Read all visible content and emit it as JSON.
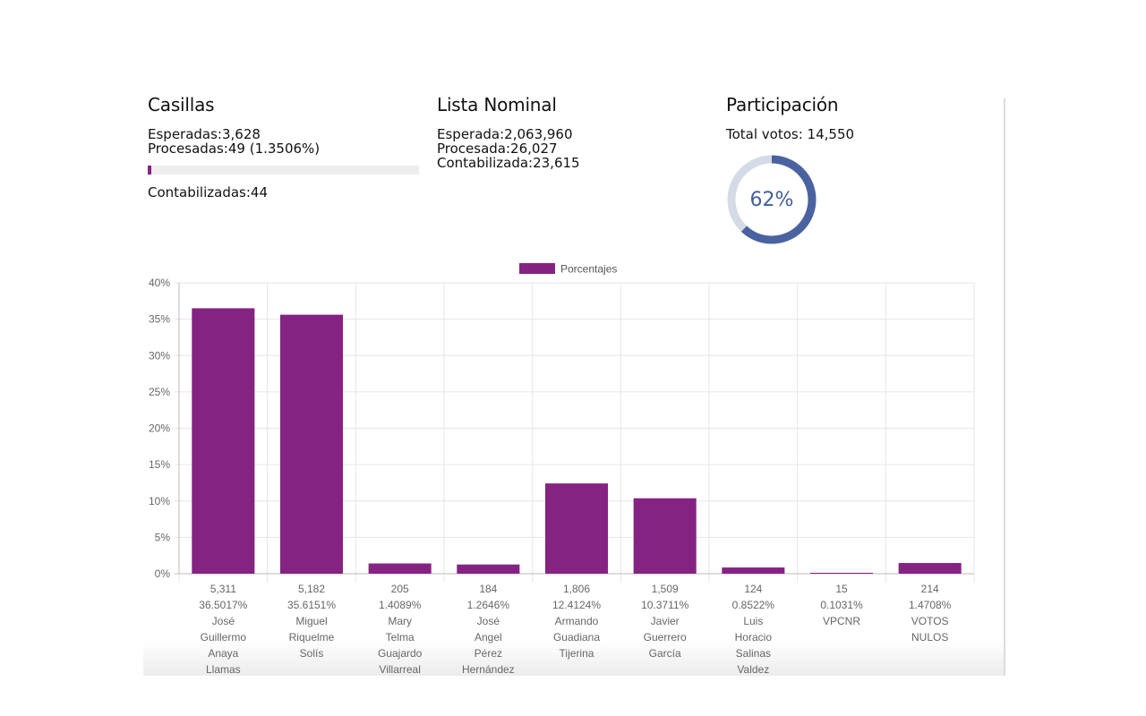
{
  "casillas": {
    "title": "Casillas",
    "esperadas": "Esperadas:3,628",
    "procesadas": "Procesadas:49 (1.3506%)",
    "progress_percent": 1.3506,
    "contabilizadas": "Contabilizadas:44"
  },
  "lista_nominal": {
    "title": "Lista Nominal",
    "esperada": "Esperada:2,063,960",
    "procesada": "Procesada:26,027",
    "contabilizada": "Contabilizada:23,615"
  },
  "participacion": {
    "title": "Participación",
    "total_votos": "Total votos: 14,550",
    "percent_label": "62%",
    "percent_value": 62
  },
  "colors": {
    "bar": "#852382",
    "progress": "#852382",
    "donut_fill": "#4a63a0",
    "donut_track": "#d5dbe6",
    "grid": "#e6e6e6"
  },
  "chart_data": {
    "type": "bar",
    "legend": [
      "Porcentajes"
    ],
    "legend_position": "top",
    "ylim": [
      0,
      40
    ],
    "y_ticks": [
      "0%",
      "5%",
      "10%",
      "15%",
      "20%",
      "25%",
      "30%",
      "35%",
      "40%"
    ],
    "y_tick_values": [
      0,
      5,
      10,
      15,
      20,
      25,
      30,
      35,
      40
    ],
    "grid": true,
    "categories": [
      [
        "5,311",
        "36.5017%",
        "José",
        "Guillermo",
        "Anaya",
        "Llamas"
      ],
      [
        "5,182",
        "35.6151%",
        "Miguel",
        "Riquelme",
        "Solís"
      ],
      [
        "205",
        "1.4089%",
        "Mary",
        "Telma",
        "Guajardo",
        "Villarreal"
      ],
      [
        "184",
        "1.2646%",
        "José",
        "Angel",
        "Pérez",
        "Hernández"
      ],
      [
        "1,806",
        "12.4124%",
        "Armando",
        "Guadiana",
        "Tijerina"
      ],
      [
        "1,509",
        "10.3711%",
        "Javier",
        "Guerrero",
        "García"
      ],
      [
        "124",
        "0.8522%",
        "Luis",
        "Horacio",
        "Salinas",
        "Valdez"
      ],
      [
        "15",
        "0.1031%",
        "VPCNR"
      ],
      [
        "214",
        "1.4708%",
        "VOTOS",
        "NULOS"
      ]
    ],
    "series": [
      {
        "name": "Porcentajes",
        "values": [
          36.5017,
          35.6151,
          1.4089,
          1.2646,
          12.4124,
          10.3711,
          0.8522,
          0.1031,
          1.4708
        ]
      }
    ]
  }
}
